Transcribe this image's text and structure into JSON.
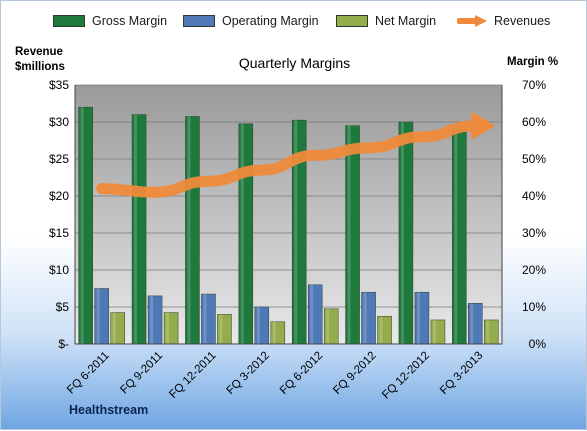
{
  "chart_data": {
    "type": "bar",
    "title": "Quarterly Margins",
    "categories": [
      "FQ 6-2011",
      "FQ 9-2011",
      "FQ 12-2011",
      "FQ 3-2012",
      "FQ 6-2012",
      "FQ 9-2012",
      "FQ 12-2012",
      "FQ 3-2013"
    ],
    "left_axis": {
      "label_line1": "Revenue",
      "label_line2": "$millions",
      "range": [
        0,
        35
      ],
      "ticks": [
        "$-",
        "$5",
        "$10",
        "$15",
        "$20",
        "$25",
        "$30",
        "$35"
      ]
    },
    "right_axis": {
      "label": "Margin %",
      "range": [
        0,
        70
      ],
      "ticks": [
        "0%",
        "10%",
        "20%",
        "30%",
        "40%",
        "50%",
        "60%",
        "70%"
      ]
    },
    "series": [
      {
        "name": "Gross Margin",
        "axis": "right",
        "color": "#1e7a3c",
        "values": [
          64,
          62,
          61.5,
          59.5,
          60.5,
          59,
          60,
          58
        ]
      },
      {
        "name": "Operating Margin",
        "axis": "right",
        "color": "#4f79b6",
        "values": [
          15,
          13,
          13.5,
          10,
          16,
          14,
          14,
          11
        ]
      },
      {
        "name": "Net Margin",
        "axis": "right",
        "color": "#94ac4c",
        "values": [
          8.5,
          8.5,
          8,
          6,
          9.5,
          7.5,
          6.5,
          6.5
        ]
      },
      {
        "name": "Revenues",
        "axis": "left",
        "type": "line",
        "color": "#ef8a3a",
        "values": [
          21,
          20.5,
          22,
          23.5,
          25.5,
          26.5,
          28,
          29.5
        ]
      }
    ],
    "grid": true,
    "legend": "top"
  },
  "footer": {
    "company": "Healthstream"
  }
}
